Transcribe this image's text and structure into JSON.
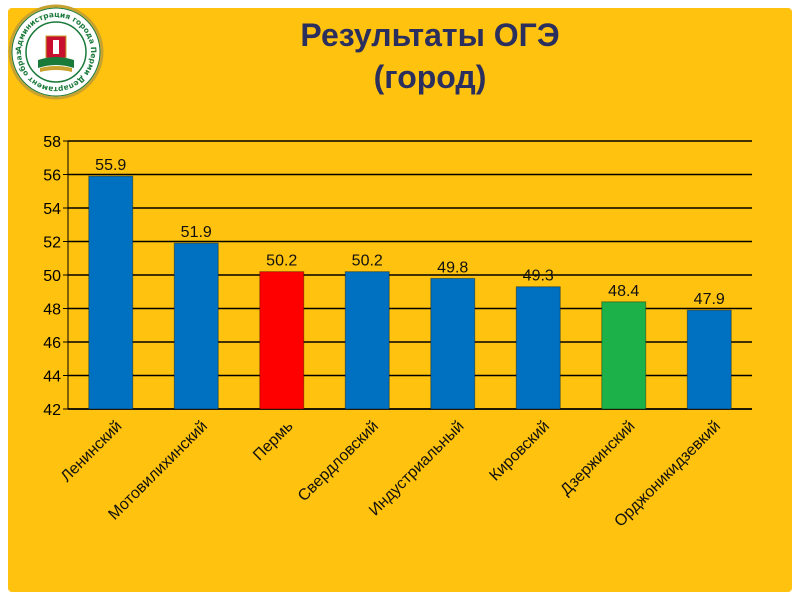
{
  "title_line1": "Результаты ОГЭ",
  "title_line2": "(город)",
  "logo_text": "Администрация города Перми Департамент образования",
  "colors": {
    "background": "#ffc20e",
    "default_bar": "#0070c0",
    "highlight_red": "#ff0000",
    "highlight_green": "#1db14a",
    "gridline": "#000000",
    "title": "#2b2f5e"
  },
  "chart_data": {
    "type": "bar",
    "title": "Результаты ОГЭ (город)",
    "categories": [
      "Ленинский",
      "Мотовилихинский",
      "Пермь",
      "Свердловский",
      "Индустриальный",
      "Кировский",
      "Дзержинский",
      "Орджоникидзевкий"
    ],
    "values": [
      55.9,
      51.9,
      50.2,
      50.2,
      49.8,
      49.3,
      48.4,
      47.9
    ],
    "value_labels": [
      "55.9",
      "51.9",
      "50.2",
      "50.2",
      "49.8",
      "49.3",
      "48.4",
      "47.9"
    ],
    "bar_colors": [
      "#0070c0",
      "#0070c0",
      "#ff0000",
      "#0070c0",
      "#0070c0",
      "#0070c0",
      "#1db14a",
      "#0070c0"
    ],
    "ylim": [
      42,
      58
    ],
    "yticks": [
      42,
      44,
      46,
      48,
      50,
      52,
      54,
      56,
      58
    ],
    "grid": true,
    "legend": "none",
    "xlabel": "",
    "ylabel": ""
  }
}
